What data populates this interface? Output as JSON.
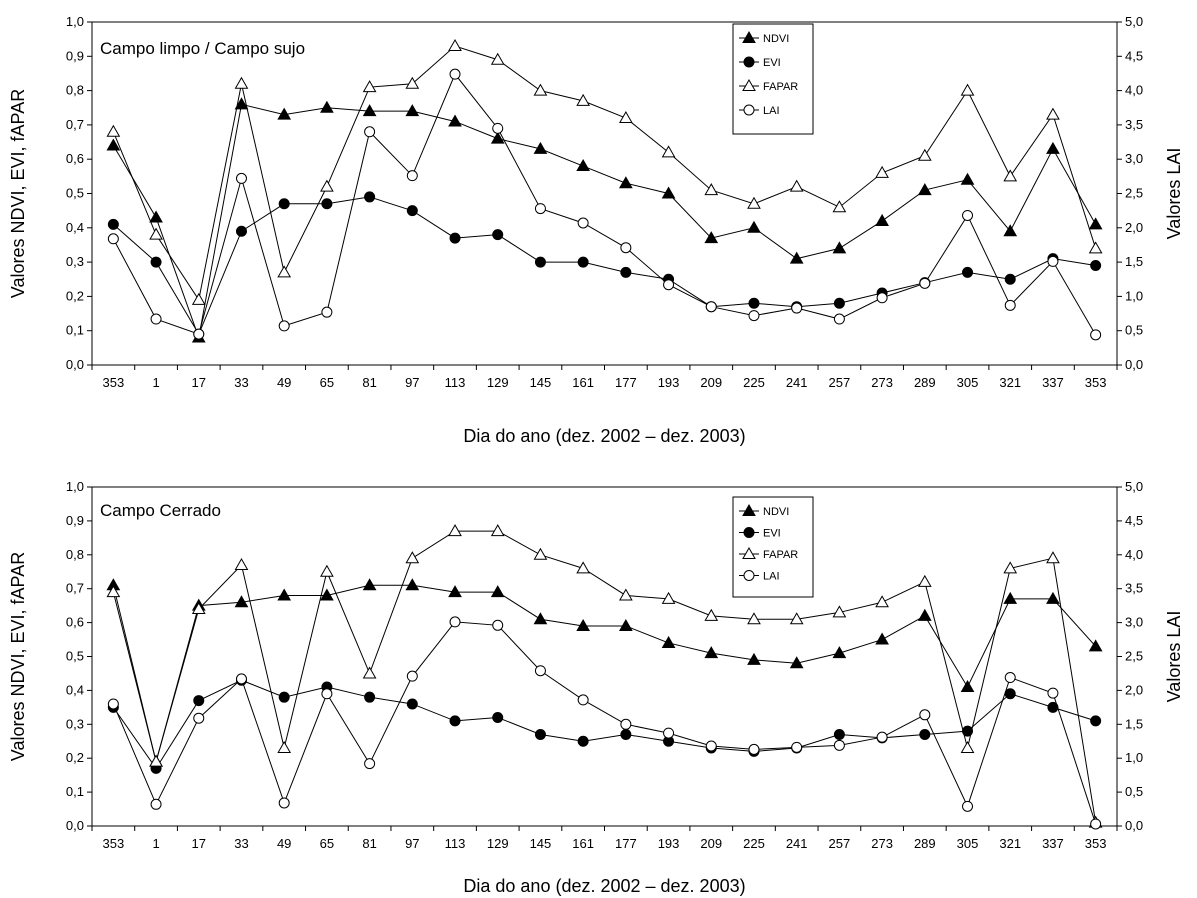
{
  "chart_data": [
    {
      "type": "line",
      "title": "Campo limpo / Campo sujo",
      "xlabel": "Dia do ano (dez. 2002 – dez. 2003)",
      "ylabel": "Valores NDVI, EVI, fAPAR",
      "ylabel_right": "Valores LAI",
      "ylim": [
        0,
        1.0
      ],
      "ylim_right": [
        0,
        5.0
      ],
      "yticks": [
        "0,0",
        "0,1",
        "0,2",
        "0,3",
        "0,4",
        "0,5",
        "0,6",
        "0,7",
        "0,8",
        "0,9",
        "1,0"
      ],
      "yticks_right": [
        "0,0",
        "0,5",
        "1,0",
        "1,5",
        "2,0",
        "2,5",
        "3,0",
        "3,5",
        "4,0",
        "4,5",
        "5,0"
      ],
      "categories": [
        "353",
        "1",
        "17",
        "33",
        "49",
        "65",
        "81",
        "97",
        "113",
        "129",
        "145",
        "161",
        "177",
        "193",
        "209",
        "225",
        "241",
        "257",
        "273",
        "289",
        "305",
        "321",
        "337",
        "353"
      ],
      "legend_position": "top-right",
      "series": [
        {
          "name": "NDVI",
          "axis": "left",
          "marker": "filled-triangle",
          "values": [
            0.64,
            0.43,
            0.08,
            0.76,
            0.73,
            0.75,
            0.74,
            0.74,
            0.71,
            0.66,
            0.63,
            0.58,
            0.53,
            0.5,
            0.37,
            0.4,
            0.31,
            0.34,
            0.42,
            0.51,
            0.54,
            0.39,
            0.63,
            0.41
          ]
        },
        {
          "name": "EVI",
          "axis": "left",
          "marker": "filled-circle",
          "values": [
            0.41,
            0.3,
            0.09,
            0.39,
            0.47,
            0.47,
            0.49,
            0.45,
            0.37,
            0.38,
            0.3,
            0.3,
            0.27,
            0.25,
            0.17,
            0.18,
            0.17,
            0.18,
            0.21,
            0.24,
            0.27,
            0.25,
            0.31,
            0.29
          ]
        },
        {
          "name": "FAPAR",
          "axis": "left",
          "marker": "open-triangle",
          "values": [
            0.68,
            0.38,
            0.19,
            0.82,
            0.27,
            0.52,
            0.81,
            0.82,
            0.93,
            0.89,
            0.8,
            0.77,
            0.72,
            0.62,
            0.51,
            0.47,
            0.52,
            0.46,
            0.56,
            0.61,
            0.8,
            0.55,
            0.73,
            0.34
          ]
        },
        {
          "name": "LAI",
          "axis": "right",
          "marker": "open-circle",
          "values": [
            1.84,
            0.67,
            0.45,
            2.72,
            0.57,
            0.77,
            3.4,
            2.76,
            4.24,
            3.45,
            2.28,
            2.07,
            1.71,
            1.17,
            0.85,
            0.72,
            0.83,
            0.67,
            0.98,
            1.19,
            2.18,
            0.87,
            1.51,
            0.44
          ]
        }
      ]
    },
    {
      "type": "line",
      "title": "Campo Cerrado",
      "xlabel": "Dia do ano (dez. 2002 – dez. 2003)",
      "ylabel": "Valores NDVI, EVI, fAPAR",
      "ylabel_right": "Valores LAI",
      "ylim": [
        0,
        1.0
      ],
      "ylim_right": [
        0,
        5.0
      ],
      "yticks": [
        "0,0",
        "0,1",
        "0,2",
        "0,3",
        "0,4",
        "0,5",
        "0,6",
        "0,7",
        "0,8",
        "0,9",
        "1,0"
      ],
      "yticks_right": [
        "0,0",
        "0,5",
        "1,0",
        "1,5",
        "2,0",
        "2,5",
        "3,0",
        "3,5",
        "4,0",
        "4,5",
        "5,0"
      ],
      "categories": [
        "353",
        "1",
        "17",
        "33",
        "49",
        "65",
        "81",
        "97",
        "113",
        "129",
        "145",
        "161",
        "177",
        "193",
        "209",
        "225",
        "241",
        "257",
        "273",
        "289",
        "305",
        "321",
        "337",
        "353"
      ],
      "legend_position": "top-right",
      "series": [
        {
          "name": "NDVI",
          "axis": "left",
          "marker": "filled-triangle",
          "values": [
            0.71,
            0.19,
            0.65,
            0.66,
            0.68,
            0.68,
            0.71,
            0.71,
            0.69,
            0.69,
            0.61,
            0.59,
            0.59,
            0.54,
            0.51,
            0.49,
            0.48,
            0.51,
            0.55,
            0.62,
            0.41,
            0.67,
            0.67,
            0.53
          ]
        },
        {
          "name": "EVI",
          "axis": "left",
          "marker": "filled-circle",
          "values": [
            0.35,
            0.17,
            0.37,
            0.43,
            0.38,
            0.41,
            0.38,
            0.36,
            0.31,
            0.32,
            0.27,
            0.25,
            0.27,
            0.25,
            0.23,
            0.22,
            0.23,
            0.27,
            0.26,
            0.27,
            0.28,
            0.39,
            0.35,
            0.31
          ]
        },
        {
          "name": "FAPAR",
          "axis": "left",
          "marker": "open-triangle",
          "values": [
            0.69,
            0.19,
            0.64,
            0.77,
            0.23,
            0.75,
            0.45,
            0.79,
            0.87,
            0.87,
            0.8,
            0.76,
            0.68,
            0.67,
            0.62,
            0.61,
            0.61,
            0.63,
            0.66,
            0.72,
            0.23,
            0.76,
            0.79,
            0.01
          ]
        },
        {
          "name": "LAI",
          "axis": "right",
          "marker": "open-circle",
          "values": [
            1.8,
            0.32,
            1.59,
            2.17,
            0.34,
            1.95,
            0.92,
            2.21,
            3.01,
            2.96,
            2.29,
            1.86,
            1.5,
            1.37,
            1.18,
            1.13,
            1.16,
            1.19,
            1.31,
            1.64,
            0.29,
            2.19,
            1.96,
            0.03
          ]
        }
      ]
    }
  ]
}
